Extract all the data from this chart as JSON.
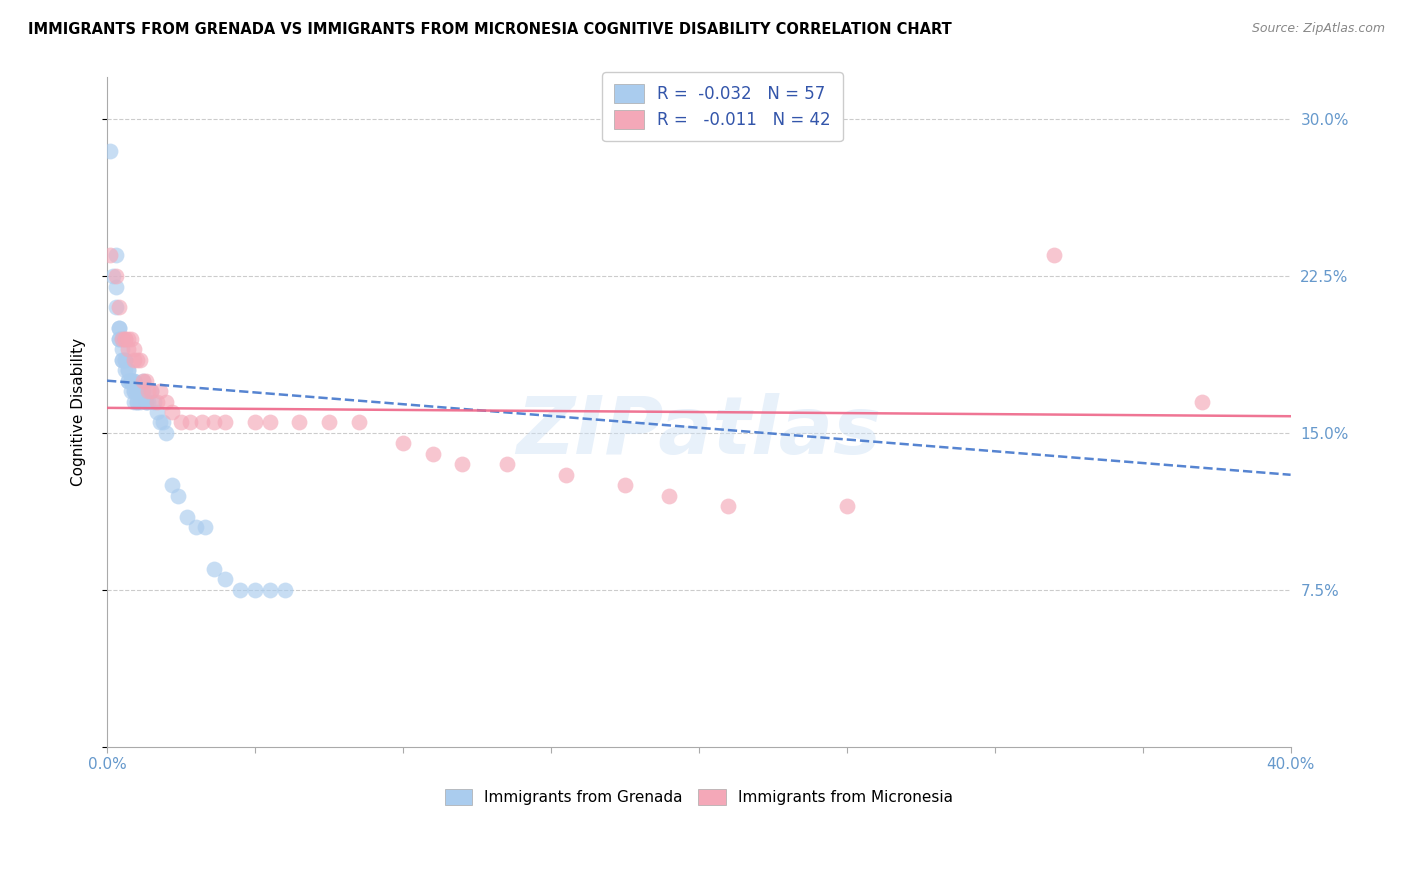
{
  "title": "IMMIGRANTS FROM GRENADA VS IMMIGRANTS FROM MICRONESIA COGNITIVE DISABILITY CORRELATION CHART",
  "source": "Source: ZipAtlas.com",
  "ylabel": "Cognitive Disability",
  "xlim": [
    0.0,
    0.4
  ],
  "ylim": [
    0.0,
    0.32
  ],
  "grenada_color": "#aaccee",
  "micronesia_color": "#f4a8b8",
  "grenada_line_color": "#4477cc",
  "micronesia_line_color": "#ee6688",
  "watermark": "ZIPatlas",
  "tick_color": "#6699cc",
  "grenada_x": [
    0.001,
    0.002,
    0.003,
    0.003,
    0.003,
    0.004,
    0.004,
    0.004,
    0.004,
    0.005,
    0.005,
    0.005,
    0.005,
    0.006,
    0.006,
    0.006,
    0.007,
    0.007,
    0.007,
    0.007,
    0.008,
    0.008,
    0.008,
    0.008,
    0.009,
    0.009,
    0.009,
    0.009,
    0.009,
    0.01,
    0.01,
    0.01,
    0.01,
    0.011,
    0.011,
    0.012,
    0.012,
    0.013,
    0.013,
    0.014,
    0.015,
    0.016,
    0.017,
    0.018,
    0.019,
    0.02,
    0.022,
    0.024,
    0.027,
    0.03,
    0.033,
    0.036,
    0.04,
    0.045,
    0.05,
    0.055,
    0.06
  ],
  "grenada_y": [
    0.285,
    0.225,
    0.235,
    0.22,
    0.21,
    0.2,
    0.195,
    0.2,
    0.195,
    0.195,
    0.185,
    0.185,
    0.19,
    0.185,
    0.18,
    0.185,
    0.175,
    0.175,
    0.18,
    0.18,
    0.175,
    0.175,
    0.17,
    0.175,
    0.175,
    0.175,
    0.17,
    0.165,
    0.17,
    0.17,
    0.165,
    0.165,
    0.17,
    0.165,
    0.17,
    0.17,
    0.175,
    0.165,
    0.165,
    0.165,
    0.17,
    0.165,
    0.16,
    0.155,
    0.155,
    0.15,
    0.125,
    0.12,
    0.11,
    0.105,
    0.105,
    0.085,
    0.08,
    0.075,
    0.075,
    0.075,
    0.075
  ],
  "micronesia_x": [
    0.001,
    0.003,
    0.004,
    0.005,
    0.006,
    0.006,
    0.007,
    0.007,
    0.008,
    0.009,
    0.009,
    0.01,
    0.011,
    0.012,
    0.013,
    0.014,
    0.015,
    0.017,
    0.018,
    0.02,
    0.022,
    0.025,
    0.028,
    0.032,
    0.036,
    0.04,
    0.05,
    0.055,
    0.065,
    0.075,
    0.085,
    0.1,
    0.11,
    0.12,
    0.135,
    0.155,
    0.175,
    0.19,
    0.21,
    0.25,
    0.32,
    0.37
  ],
  "micronesia_y": [
    0.235,
    0.225,
    0.21,
    0.195,
    0.195,
    0.195,
    0.195,
    0.19,
    0.195,
    0.19,
    0.185,
    0.185,
    0.185,
    0.175,
    0.175,
    0.17,
    0.17,
    0.165,
    0.17,
    0.165,
    0.16,
    0.155,
    0.155,
    0.155,
    0.155,
    0.155,
    0.155,
    0.155,
    0.155,
    0.155,
    0.155,
    0.145,
    0.14,
    0.135,
    0.135,
    0.13,
    0.125,
    0.12,
    0.115,
    0.115,
    0.235,
    0.165
  ],
  "grenada_trend_x0": 0.0,
  "grenada_trend_x1": 0.4,
  "grenada_trend_y0": 0.175,
  "grenada_trend_y1": 0.13,
  "micronesia_trend_x0": 0.0,
  "micronesia_trend_x1": 0.4,
  "micronesia_trend_y0": 0.162,
  "micronesia_trend_y1": 0.158
}
